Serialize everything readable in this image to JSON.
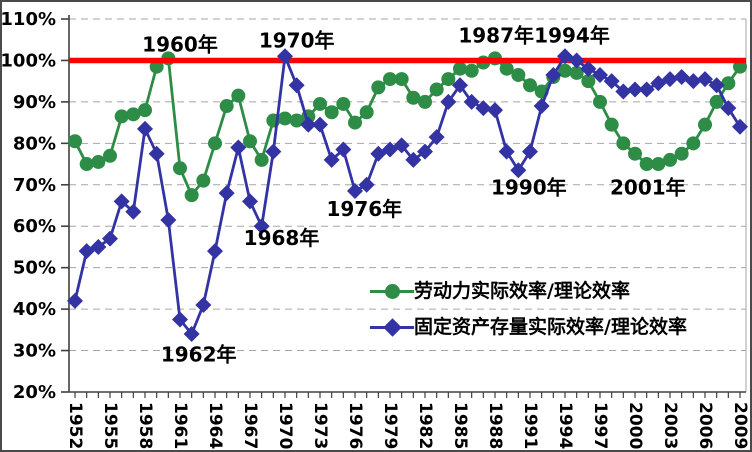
{
  "chart_data": {
    "type": "line",
    "title": "",
    "x_range": [
      1952,
      2009
    ],
    "x_tick_labels": [
      "1952",
      "1955",
      "1958",
      "1961",
      "1964",
      "1967",
      "1970",
      "1973",
      "1976",
      "1979",
      "1982",
      "1985",
      "1988",
      "1991",
      "1994",
      "1997",
      "2000",
      "2003",
      "2006",
      "2009"
    ],
    "y_tick_labels": [
      "110%",
      "100%",
      "90%",
      "80%",
      "70%",
      "60%",
      "50%",
      "40%",
      "30%",
      "20%"
    ],
    "ylim": [
      20,
      110
    ],
    "y_tick_step": 10,
    "grid": true,
    "legend_position": "center-right-inside",
    "reference_line": {
      "value": 100,
      "color": "#FF0000"
    },
    "colors": {
      "labor": "#2D8C46",
      "capital": "#3333A3",
      "gridline": "#A6A6A6",
      "axis": "#404040",
      "text": "#000000",
      "plot_right_border": "#B3B3B3"
    },
    "series": [
      {
        "name": "劳动力实际效率/理论效率",
        "marker": "circle",
        "color": "#2D8C46",
        "values": [
          80.5,
          75,
          75.5,
          77,
          86.5,
          87,
          88,
          98.5,
          100.5,
          74,
          67.5,
          71,
          80,
          89,
          91.5,
          80.5,
          76,
          85.5,
          86,
          85.5,
          86.5,
          89.5,
          87.5,
          89.5,
          85,
          87.5,
          93.5,
          95.5,
          95.5,
          91,
          90,
          93,
          95.5,
          98,
          97.5,
          99.5,
          100.5,
          98,
          96.5,
          94,
          92.5,
          96,
          97.5,
          97,
          95,
          90,
          84.5,
          80,
          77.5,
          75,
          75,
          76,
          77.5,
          80,
          84.5,
          90,
          94.5,
          98.5
        ]
      },
      {
        "name": "固定资产存量实际效率/理论效率",
        "marker": "diamond",
        "color": "#3333A3",
        "values": [
          42,
          54,
          55,
          57,
          66,
          63.5,
          83.5,
          77.5,
          61.5,
          37.5,
          34,
          41,
          54,
          68,
          79,
          66,
          60,
          78,
          101,
          94,
          84.5,
          84.5,
          76,
          78.5,
          68.5,
          70,
          77.5,
          78.5,
          79.5,
          76,
          78,
          81.5,
          90,
          94,
          90,
          88.5,
          88,
          78,
          73.5,
          78,
          89,
          96.5,
          101,
          100,
          98,
          96.5,
          95,
          92.5,
          93,
          93,
          94.5,
          95.5,
          96,
          95,
          95.5,
          94,
          88.5,
          84
        ]
      }
    ],
    "annotations": [
      {
        "text": "1960年",
        "x_year": 1961.0,
        "y_pct": 103.8
      },
      {
        "text": "1970年",
        "x_year": 1971.0,
        "y_pct": 104.8
      },
      {
        "text": "1987年",
        "x_year": 1988.1,
        "y_pct": 106.0
      },
      {
        "text": "1994年",
        "x_year": 1994.6,
        "y_pct": 106.0
      },
      {
        "text": "1990年",
        "x_year": 1990.9,
        "y_pct": 69.4
      },
      {
        "text": "2001年",
        "x_year": 2001.1,
        "y_pct": 69.4
      },
      {
        "text": "1976年",
        "x_year": 1976.8,
        "y_pct": 64.1
      },
      {
        "text": "1968年",
        "x_year": 1969.7,
        "y_pct": 57.1
      },
      {
        "text": "1962年",
        "x_year": 1962.6,
        "y_pct": 29.1
      }
    ]
  }
}
